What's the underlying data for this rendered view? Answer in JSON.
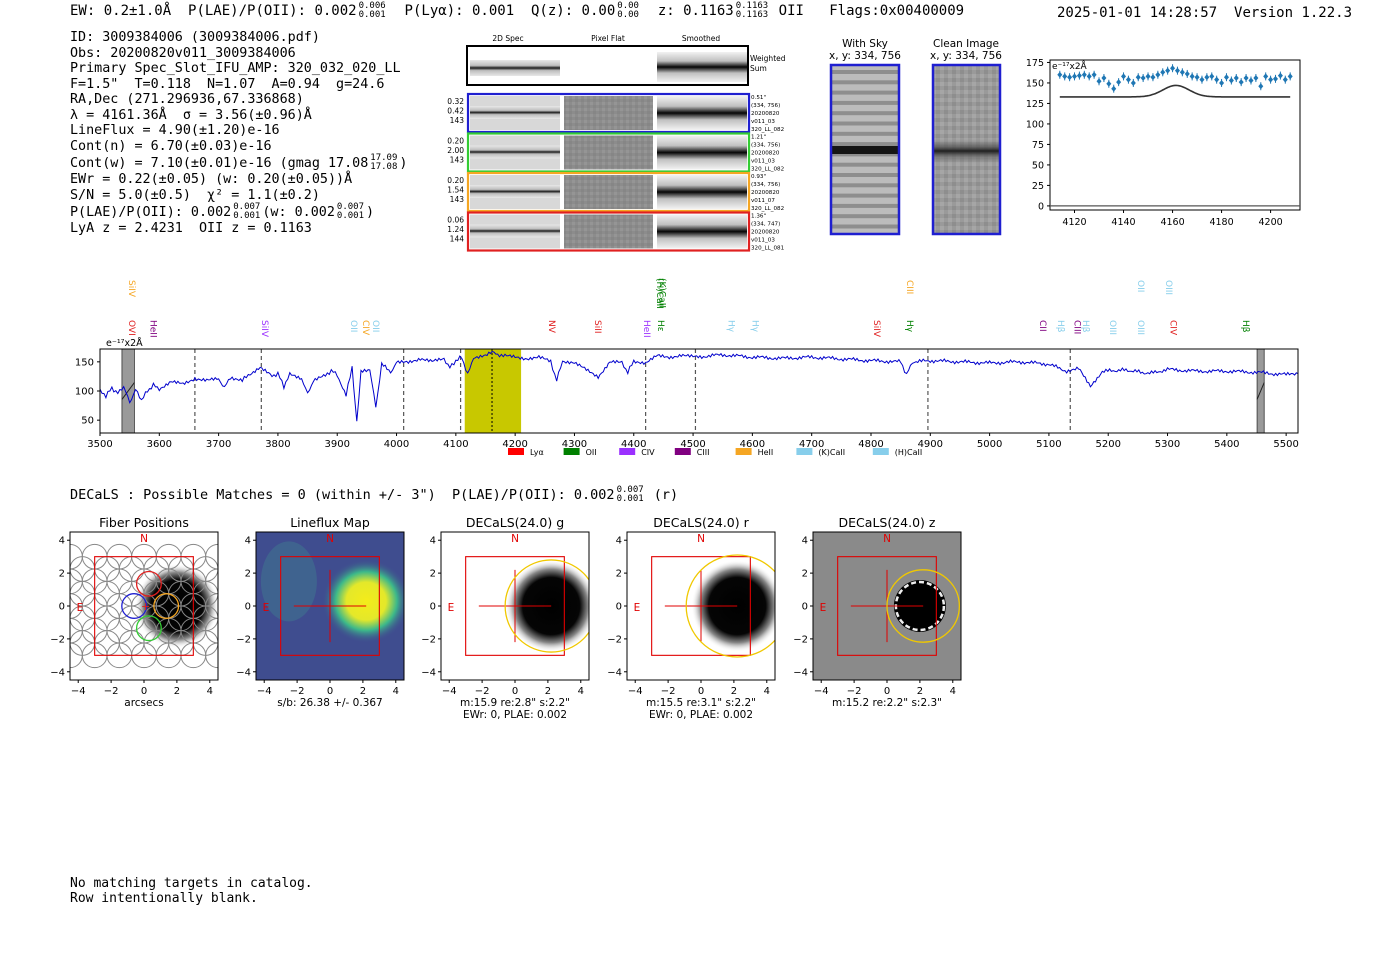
{
  "header": {
    "ew": "EW: 0.2±1.0Å",
    "plae_label": "P(LAE)/P(OII): 0.002",
    "plae_hi": "0.006",
    "plae_lo": "0.001",
    "plya": "P(Lyα): 0.001",
    "qz_label": "Q(z): 0.00",
    "qz_hi": "0.00",
    "qz_lo": "0.00",
    "z_label": "z: 0.1163",
    "z_hi": "0.1163",
    "z_lo": "0.1163",
    "z_line": "OII",
    "flags": "Flags:0x00400009",
    "datetime": "2025-01-01 14:28:57",
    "version": "Version 1.22.3"
  },
  "info": {
    "id": "ID: 3009384006 (3009384006.pdf)",
    "obs": "Obs: 20200820v011_3009384006",
    "slot": "Primary Spec_Slot_IFU_AMP: 320_032_020_LL",
    "params": "F=1.5\"  T=0.118  N=1.07  A=0.94  g=24.6",
    "radec": "RA,Dec (271.296936,67.336868)",
    "lambda": "λ = 4161.36Å  σ = 3.56(±0.96)Å",
    "lineflux": "LineFlux = 4.90(±1.20)e-16",
    "contn": "Cont(n) = 6.70(±0.03)e-16",
    "contw": "Cont(w) = 7.10(±0.01)e-16 (gmag 17.08",
    "contw_hi": "17.09",
    "contw_lo": "17.08",
    "ewr": "EWr = 0.22(±0.05) (w: 0.20(±0.05))Å",
    "sn": "S/N = 5.0(±0.5)  χ² = 1.1(±0.2)",
    "plae": "P(LAE)/P(OII): 0.002",
    "plae_hi": "0.007",
    "plae_lo": "0.001",
    "plae_w": "(w: 0.002",
    "plae_w_hi": "0.007",
    "plae_w_lo": "0.001",
    "z": "LyA z = 2.4231  OII z = 0.1163"
  },
  "cutouts": {
    "headers": [
      "2D Spec",
      "Pixel Flat",
      "Smoothed"
    ],
    "weighted_sum": "Weighted\nSum",
    "rows": [
      {
        "color": "#1f1fd0",
        "left": [
          "0.32",
          "0.42",
          "143"
        ],
        "right": [
          "0.51\"",
          "(334, 756)",
          "20200820",
          "v011_03",
          "320_LL_082"
        ]
      },
      {
        "color": "#33cc33",
        "left": [
          "0.20",
          "2.00",
          "143"
        ],
        "right": [
          "1.21\"",
          "(334, 756)",
          "20200820",
          "v011_03",
          "320_LL_082"
        ]
      },
      {
        "color": "#f5a623",
        "left": [
          "0.20",
          "1.54",
          "143"
        ],
        "right": [
          "0.93\"",
          "(334, 756)",
          "20200820",
          "v011_07",
          "320_LL_082"
        ]
      },
      {
        "color": "#e02020",
        "left": [
          "0.06",
          "1.24",
          "144"
        ],
        "right": [
          "1.36\"",
          "(334, 747)",
          "20200820",
          "v011_03",
          "320_LL_081"
        ]
      }
    ],
    "with_sky": "With Sky",
    "with_sky_xy": "x, y: 334, 756",
    "clean": "Clean Image",
    "clean_xy": "x, y: 334, 756"
  },
  "zoom_chart": {
    "type": "scatter",
    "ylabel": "e⁻¹⁷x2Å",
    "xlim": [
      4110,
      4212
    ],
    "ylim": [
      -5,
      178
    ],
    "xticks": [
      4120,
      4140,
      4160,
      4180,
      4200
    ],
    "yticks": [
      0,
      25,
      50,
      75,
      100,
      125,
      150,
      175
    ],
    "x": [
      4114,
      4116,
      4118,
      4120,
      4122,
      4124,
      4126,
      4128,
      4130,
      4132,
      4134,
      4136,
      4138,
      4140,
      4142,
      4144,
      4146,
      4148,
      4150,
      4152,
      4154,
      4156,
      4158,
      4160,
      4162,
      4164,
      4166,
      4168,
      4170,
      4172,
      4174,
      4176,
      4178,
      4180,
      4182,
      4184,
      4186,
      4188,
      4190,
      4192,
      4194,
      4196,
      4198,
      4200,
      4202,
      4204,
      4206,
      4208
    ],
    "y": [
      160,
      158,
      157,
      158,
      159,
      160,
      158,
      160,
      152,
      156,
      149,
      143,
      151,
      158,
      154,
      150,
      157,
      156,
      158,
      157,
      160,
      163,
      165,
      168,
      165,
      163,
      161,
      158,
      157,
      154,
      157,
      158,
      154,
      150,
      157,
      153,
      156,
      151,
      156,
      153,
      156,
      146,
      158,
      154,
      155,
      159,
      154,
      158
    ],
    "model_base": 133,
    "model_peak": 147,
    "model_center": 4161.4,
    "model_sigma": 3.56
  },
  "spectrum": {
    "type": "line",
    "ylabel": "e⁻¹⁷x2Å",
    "xlim": [
      3500,
      5520
    ],
    "ylim": [
      28,
      172
    ],
    "xticks": [
      3500,
      3600,
      3700,
      3800,
      3900,
      4000,
      4100,
      4200,
      4300,
      4400,
      4500,
      4600,
      4700,
      4800,
      4900,
      5000,
      5100,
      5200,
      5300,
      5400,
      5500
    ],
    "yticks": [
      50,
      100,
      150
    ],
    "highlight": [
      4115,
      4210
    ],
    "detection": 4161,
    "masked": [
      [
        3537,
        3558
      ],
      [
        5451,
        5463
      ]
    ],
    "dashed": [
      3660,
      3772,
      4012,
      4108,
      4420,
      4504,
      4896,
      5136
    ],
    "profile": [
      [
        3500,
        100
      ],
      [
        3510,
        92
      ],
      [
        3520,
        105
      ],
      [
        3530,
        96
      ],
      [
        3540,
        108
      ],
      [
        3550,
        80
      ],
      [
        3560,
        102
      ],
      [
        3570,
        85
      ],
      [
        3580,
        100
      ],
      [
        3590,
        110
      ],
      [
        3600,
        104
      ],
      [
        3620,
        115
      ],
      [
        3640,
        112
      ],
      [
        3660,
        122
      ],
      [
        3680,
        118
      ],
      [
        3700,
        120
      ],
      [
        3710,
        106
      ],
      [
        3720,
        124
      ],
      [
        3740,
        118
      ],
      [
        3750,
        128
      ],
      [
        3770,
        140
      ],
      [
        3790,
        125
      ],
      [
        3800,
        130
      ],
      [
        3810,
        108
      ],
      [
        3820,
        128
      ],
      [
        3840,
        122
      ],
      [
        3850,
        95
      ],
      [
        3860,
        118
      ],
      [
        3880,
        126
      ],
      [
        3890,
        135
      ],
      [
        3900,
        128
      ],
      [
        3915,
        92
      ],
      [
        3925,
        142
      ],
      [
        3933,
        48
      ],
      [
        3940,
        132
      ],
      [
        3955,
        138
      ],
      [
        3965,
        72
      ],
      [
        3975,
        146
      ],
      [
        3990,
        132
      ],
      [
        4000,
        148
      ],
      [
        4020,
        150
      ],
      [
        4040,
        156
      ],
      [
        4060,
        150
      ],
      [
        4080,
        155
      ],
      [
        4090,
        140
      ],
      [
        4100,
        152
      ],
      [
        4110,
        158
      ],
      [
        4120,
        128
      ],
      [
        4130,
        158
      ],
      [
        4150,
        160
      ],
      [
        4161,
        166
      ],
      [
        4180,
        160
      ],
      [
        4200,
        158
      ],
      [
        4220,
        156
      ],
      [
        4240,
        158
      ],
      [
        4260,
        150
      ],
      [
        4270,
        118
      ],
      [
        4280,
        152
      ],
      [
        4300,
        148
      ],
      [
        4320,
        136
      ],
      [
        4340,
        125
      ],
      [
        4360,
        150
      ],
      [
        4380,
        148
      ],
      [
        4390,
        132
      ],
      [
        4400,
        152
      ],
      [
        4420,
        148
      ],
      [
        4440,
        160
      ],
      [
        4460,
        158
      ],
      [
        4480,
        162
      ],
      [
        4500,
        158
      ],
      [
        4550,
        162
      ],
      [
        4600,
        158
      ],
      [
        4650,
        156
      ],
      [
        4700,
        158
      ],
      [
        4750,
        155
      ],
      [
        4800,
        152
      ],
      [
        4850,
        150
      ],
      [
        4860,
        128
      ],
      [
        4870,
        150
      ],
      [
        4900,
        152
      ],
      [
        4950,
        150
      ],
      [
        5000,
        148
      ],
      [
        5050,
        150
      ],
      [
        5100,
        146
      ],
      [
        5130,
        134
      ],
      [
        5150,
        138
      ],
      [
        5170,
        108
      ],
      [
        5190,
        134
      ],
      [
        5230,
        136
      ],
      [
        5270,
        130
      ],
      [
        5300,
        137
      ],
      [
        5350,
        134
      ],
      [
        5400,
        134
      ],
      [
        5450,
        132
      ],
      [
        5500,
        128
      ],
      [
        5520,
        130
      ]
    ],
    "lines": [
      {
        "label": "OVI",
        "x": 3544,
        "row": 2,
        "color": "#e02020"
      },
      {
        "label": "HeII",
        "x": 3580,
        "row": 2,
        "color": "#800080"
      },
      {
        "label": "SiIV",
        "x": 3544,
        "row": 1,
        "color": "#f5a623"
      },
      {
        "label": "SiIV",
        "x": 3768,
        "row": 2,
        "color": "#9b30ff"
      },
      {
        "label": "OII",
        "x": 3918,
        "row": 2,
        "color": "#87ceeb"
      },
      {
        "label": "CIV",
        "x": 3938,
        "row": 2,
        "color": "#f5a623"
      },
      {
        "label": "OII",
        "x": 3955,
        "row": 2,
        "color": "#87ceeb"
      },
      {
        "label": "NV",
        "x": 4252,
        "row": 2,
        "color": "#e02020"
      },
      {
        "label": "SiII",
        "x": 4330,
        "row": 2,
        "color": "#e02020"
      },
      {
        "label": "HeII",
        "x": 4412,
        "row": 2,
        "color": "#9b30ff"
      },
      {
        "label": "Hε",
        "x": 4436,
        "row": 2,
        "color": "#008000"
      },
      {
        "label": "(H)CaII",
        "x": 4434,
        "row": 0,
        "color": "#008000"
      },
      {
        "label": "(K)CaII",
        "x": 4438,
        "row": 0,
        "color": "#008000"
      },
      {
        "label": "Hγ",
        "x": 4555,
        "row": 2,
        "color": "#87ceeb"
      },
      {
        "label": "Hγ",
        "x": 4595,
        "row": 2,
        "color": "#87ceeb"
      },
      {
        "label": "SiIV",
        "x": 4800,
        "row": 2,
        "color": "#e02020"
      },
      {
        "label": "Hγ",
        "x": 4856,
        "row": 2,
        "color": "#008000"
      },
      {
        "label": "CIII",
        "x": 4856,
        "row": 1,
        "color": "#f5a623"
      },
      {
        "label": "CII",
        "x": 5080,
        "row": 2,
        "color": "#800080"
      },
      {
        "label": "Hβ",
        "x": 5110,
        "row": 2,
        "color": "#87ceeb"
      },
      {
        "label": "CIII",
        "x": 5138,
        "row": 2,
        "color": "#800080"
      },
      {
        "label": "Hβ",
        "x": 5152,
        "row": 2,
        "color": "#87ceeb"
      },
      {
        "label": "OIII",
        "x": 5198,
        "row": 2,
        "color": "#87ceeb"
      },
      {
        "label": "OIII",
        "x": 5245,
        "row": 2,
        "color": "#87ceeb"
      },
      {
        "label": "OII",
        "x": 5245,
        "row": 1,
        "color": "#87ceeb"
      },
      {
        "label": "OIII",
        "x": 5292,
        "row": 1,
        "color": "#87ceeb"
      },
      {
        "label": "CIV",
        "x": 5300,
        "row": 2,
        "color": "#e02020"
      },
      {
        "label": "Hβ",
        "x": 5422,
        "row": 2,
        "color": "#008000"
      }
    ],
    "legend": [
      {
        "label": "Lyα",
        "color": "#ff0000"
      },
      {
        "label": "OII",
        "color": "#008000"
      },
      {
        "label": "CIV",
        "color": "#9b30ff"
      },
      {
        "label": "CIII",
        "color": "#800080"
      },
      {
        "label": "HeII",
        "color": "#f5a623"
      },
      {
        "label": "(K)CaII",
        "color": "#87ceeb"
      },
      {
        "label": "(H)CaII",
        "color": "#87ceeb"
      }
    ]
  },
  "decals": {
    "line": "DECaLS : Possible Matches = 0 (within +/- 3\")  P(LAE)/P(OII): 0.002",
    "plae_hi": "0.007",
    "plae_lo": "0.001",
    "band": "(r)"
  },
  "panels": [
    {
      "title": "Fiber Positions",
      "caption": [
        "arcsecs"
      ],
      "kind": "fiber"
    },
    {
      "title": "Lineflux Map",
      "caption": [
        "s/b: 26.38 +/- 0.367"
      ],
      "kind": "lineflux"
    },
    {
      "title": "DECaLS(24.0) g",
      "caption": [
        "m:15.9  re:2.8\"  s:2.2\"",
        "EWr: 0, PLAE: 0.002"
      ],
      "kind": "g"
    },
    {
      "title": "DECaLS(24.0) r",
      "caption": [
        "m:15.5  re:3.1\"  s:2.2\"",
        "EWr: 0, PLAE: 0.002"
      ],
      "kind": "r"
    },
    {
      "title": "DECaLS(24.0) z",
      "caption": [
        "m:15.2  re:2.2\"  s:2.3\""
      ],
      "kind": "z"
    }
  ],
  "compass": {
    "north": "N",
    "east": "E"
  },
  "panel_axis": {
    "ticks": [
      -4,
      -2,
      0,
      2,
      4
    ],
    "lim": [
      -4.5,
      4.5
    ]
  },
  "footer": {
    "line1": "No matching targets in catalog.",
    "line2": "Row intentionally blank."
  }
}
